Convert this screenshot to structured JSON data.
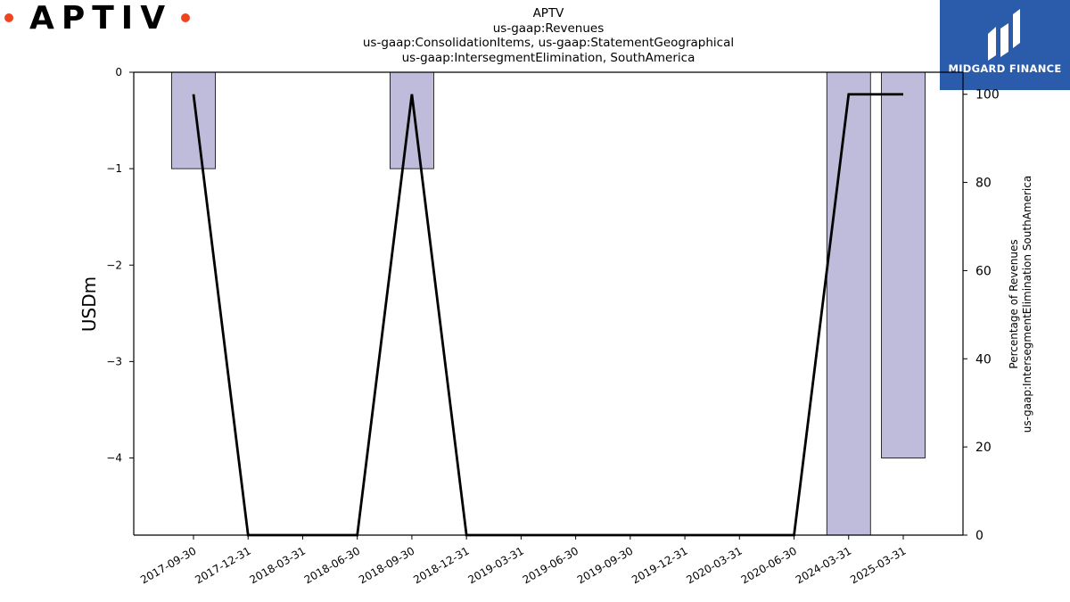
{
  "logo": {
    "text": "APTIV"
  },
  "brand": {
    "name": "MIDGARD FINANCE",
    "color": "#2b5cab"
  },
  "chart_data": {
    "type": "bar",
    "title_lines": [
      "APTV",
      "us-gaap:Revenues",
      "us-gaap:ConsolidationItems, us-gaap:StatementGeographical",
      "us-gaap:IntersegmentElimination, SouthAmerica"
    ],
    "categories": [
      "2017-09-30",
      "2017-12-31",
      "2018-03-31",
      "2018-06-30",
      "2018-09-30",
      "2018-12-31",
      "2019-03-31",
      "2019-06-30",
      "2019-09-30",
      "2019-12-31",
      "2020-03-31",
      "2020-06-30",
      "2024-03-31",
      "2025-03-31"
    ],
    "series": [
      {
        "type": "bar",
        "axis": "left",
        "values": [
          -1,
          0,
          0,
          0,
          -1,
          0,
          0,
          0,
          0,
          0,
          0,
          0,
          -4.8,
          -4
        ],
        "color": "#bebbdb"
      },
      {
        "type": "line",
        "axis": "right",
        "values": [
          100,
          0,
          0,
          0,
          100,
          0,
          0,
          0,
          0,
          0,
          0,
          0,
          100,
          100
        ],
        "color": "#000000"
      }
    ],
    "ylabel": "USDm",
    "ylabel_right": [
      "Percentage of Revenues",
      "us-gaap:IntersegmentElimination SouthAmerica"
    ],
    "ylim": [
      -4.8,
      0
    ],
    "yticks": [
      0,
      -1,
      -2,
      -3,
      -4
    ],
    "ylim_right": [
      0,
      105
    ],
    "yticks_right": [
      0,
      20,
      40,
      60,
      80,
      100
    ],
    "grid": false
  }
}
